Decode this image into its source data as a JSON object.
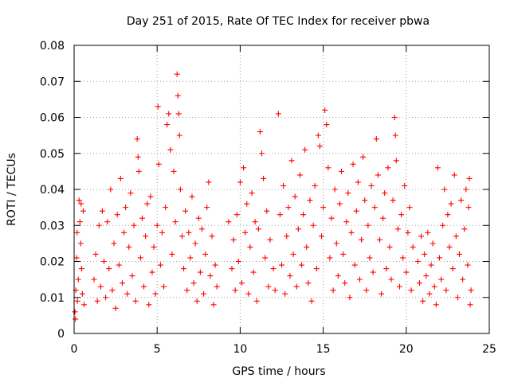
{
  "chart_data": {
    "type": "scatter",
    "title": "Day 251 of 2015, Rate Of TEC Index for receiver pbwa",
    "xlabel": "GPS time / hours",
    "ylabel": "ROTI / TECUs",
    "xlim": [
      0,
      25
    ],
    "ylim": [
      0,
      0.08
    ],
    "xticks": [
      0,
      5,
      10,
      15,
      20,
      25
    ],
    "xtick_labels": [
      "0",
      "5",
      "10",
      "15",
      "20",
      "25"
    ],
    "yticks": [
      0,
      0.01,
      0.02,
      0.03,
      0.04,
      0.05,
      0.06,
      0.07,
      0.08
    ],
    "ytick_labels": [
      "0",
      "0.01",
      "0.02",
      "0.03",
      "0.04",
      "0.05",
      "0.06",
      "0.07",
      "0.08"
    ],
    "grid": true,
    "marker": "plus",
    "color": "#ff0000",
    "points": [
      [
        0.05,
        0.006
      ],
      [
        0.1,
        0.012
      ],
      [
        0.15,
        0.021
      ],
      [
        0.2,
        0.009
      ],
      [
        0.25,
        0.015
      ],
      [
        0.3,
        0.037
      ],
      [
        0.35,
        0.031
      ],
      [
        0.4,
        0.025
      ],
      [
        0.45,
        0.018
      ],
      [
        0.5,
        0.011
      ],
      [
        0.55,
        0.034
      ],
      [
        0.6,
        0.008
      ],
      [
        0.08,
        0.004
      ],
      [
        0.18,
        0.028
      ],
      [
        0.42,
        0.036
      ],
      [
        1.2,
        0.015
      ],
      [
        1.3,
        0.022
      ],
      [
        1.4,
        0.009
      ],
      [
        1.5,
        0.03
      ],
      [
        1.6,
        0.013
      ],
      [
        1.7,
        0.034
      ],
      [
        1.8,
        0.02
      ],
      [
        1.9,
        0.01
      ],
      [
        2.0,
        0.031
      ],
      [
        2.1,
        0.018
      ],
      [
        2.2,
        0.04
      ],
      [
        2.3,
        0.012
      ],
      [
        2.4,
        0.025
      ],
      [
        2.5,
        0.007
      ],
      [
        2.6,
        0.033
      ],
      [
        2.7,
        0.019
      ],
      [
        2.8,
        0.043
      ],
      [
        2.9,
        0.014
      ],
      [
        3.0,
        0.028
      ],
      [
        3.1,
        0.035
      ],
      [
        3.2,
        0.011
      ],
      [
        3.3,
        0.024
      ],
      [
        3.4,
        0.039
      ],
      [
        3.5,
        0.016
      ],
      [
        3.6,
        0.03
      ],
      [
        3.7,
        0.009
      ],
      [
        3.8,
        0.054
      ],
      [
        3.85,
        0.049
      ],
      [
        3.9,
        0.045
      ],
      [
        4.0,
        0.021
      ],
      [
        4.1,
        0.032
      ],
      [
        4.2,
        0.013
      ],
      [
        4.3,
        0.027
      ],
      [
        4.4,
        0.036
      ],
      [
        4.5,
        0.008
      ],
      [
        4.6,
        0.038
      ],
      [
        4.7,
        0.017
      ],
      [
        4.8,
        0.024
      ],
      [
        4.9,
        0.011
      ],
      [
        5.0,
        0.03
      ],
      [
        5.05,
        0.063
      ],
      [
        5.1,
        0.047
      ],
      [
        5.2,
        0.019
      ],
      [
        5.3,
        0.028
      ],
      [
        5.4,
        0.013
      ],
      [
        5.5,
        0.035
      ],
      [
        5.6,
        0.058
      ],
      [
        5.7,
        0.061
      ],
      [
        5.8,
        0.051
      ],
      [
        5.9,
        0.022
      ],
      [
        6.0,
        0.045
      ],
      [
        6.1,
        0.031
      ],
      [
        6.2,
        0.072
      ],
      [
        6.25,
        0.066
      ],
      [
        6.3,
        0.061
      ],
      [
        6.35,
        0.055
      ],
      [
        6.4,
        0.04
      ],
      [
        6.5,
        0.027
      ],
      [
        6.6,
        0.018
      ],
      [
        6.7,
        0.034
      ],
      [
        6.8,
        0.012
      ],
      [
        6.9,
        0.028
      ],
      [
        7.0,
        0.021
      ],
      [
        7.1,
        0.038
      ],
      [
        7.2,
        0.014
      ],
      [
        7.3,
        0.025
      ],
      [
        7.4,
        0.009
      ],
      [
        7.5,
        0.032
      ],
      [
        7.6,
        0.017
      ],
      [
        7.7,
        0.029
      ],
      [
        7.8,
        0.011
      ],
      [
        7.9,
        0.022
      ],
      [
        8.0,
        0.035
      ],
      [
        8.1,
        0.042
      ],
      [
        8.2,
        0.016
      ],
      [
        8.3,
        0.027
      ],
      [
        8.4,
        0.008
      ],
      [
        8.5,
        0.019
      ],
      [
        8.6,
        0.013
      ],
      [
        9.3,
        0.031
      ],
      [
        9.5,
        0.018
      ],
      [
        9.6,
        0.026
      ],
      [
        9.7,
        0.012
      ],
      [
        9.8,
        0.033
      ],
      [
        9.9,
        0.02
      ],
      [
        10.0,
        0.042
      ],
      [
        10.1,
        0.014
      ],
      [
        10.2,
        0.046
      ],
      [
        10.3,
        0.028
      ],
      [
        10.4,
        0.036
      ],
      [
        10.5,
        0.011
      ],
      [
        10.6,
        0.024
      ],
      [
        10.7,
        0.039
      ],
      [
        10.8,
        0.017
      ],
      [
        10.9,
        0.031
      ],
      [
        11.0,
        0.009
      ],
      [
        11.1,
        0.029
      ],
      [
        11.2,
        0.056
      ],
      [
        11.3,
        0.05
      ],
      [
        11.4,
        0.043
      ],
      [
        11.5,
        0.021
      ],
      [
        11.6,
        0.034
      ],
      [
        11.7,
        0.013
      ],
      [
        11.8,
        0.026
      ],
      [
        12.0,
        0.018
      ],
      [
        12.1,
        0.012
      ],
      [
        12.3,
        0.061
      ],
      [
        12.4,
        0.033
      ],
      [
        12.5,
        0.019
      ],
      [
        12.6,
        0.041
      ],
      [
        12.7,
        0.011
      ],
      [
        12.8,
        0.027
      ],
      [
        12.9,
        0.035
      ],
      [
        13.0,
        0.016
      ],
      [
        13.1,
        0.048
      ],
      [
        13.2,
        0.022
      ],
      [
        13.3,
        0.038
      ],
      [
        13.4,
        0.013
      ],
      [
        13.5,
        0.029
      ],
      [
        13.6,
        0.044
      ],
      [
        13.7,
        0.019
      ],
      [
        13.8,
        0.033
      ],
      [
        13.9,
        0.051
      ],
      [
        14.0,
        0.024
      ],
      [
        14.1,
        0.014
      ],
      [
        14.2,
        0.037
      ],
      [
        14.3,
        0.009
      ],
      [
        14.4,
        0.03
      ],
      [
        14.5,
        0.041
      ],
      [
        14.6,
        0.018
      ],
      [
        14.7,
        0.055
      ],
      [
        14.8,
        0.052
      ],
      [
        14.9,
        0.027
      ],
      [
        15.0,
        0.035
      ],
      [
        15.1,
        0.062
      ],
      [
        15.2,
        0.058
      ],
      [
        15.3,
        0.046
      ],
      [
        15.4,
        0.021
      ],
      [
        15.5,
        0.032
      ],
      [
        15.6,
        0.012
      ],
      [
        15.7,
        0.04
      ],
      [
        15.8,
        0.025
      ],
      [
        15.9,
        0.016
      ],
      [
        16.0,
        0.036
      ],
      [
        16.1,
        0.045
      ],
      [
        16.2,
        0.022
      ],
      [
        16.3,
        0.014
      ],
      [
        16.4,
        0.031
      ],
      [
        16.5,
        0.039
      ],
      [
        16.6,
        0.01
      ],
      [
        16.7,
        0.028
      ],
      [
        16.8,
        0.047
      ],
      [
        16.9,
        0.019
      ],
      [
        17.0,
        0.034
      ],
      [
        17.1,
        0.042
      ],
      [
        17.2,
        0.015
      ],
      [
        17.3,
        0.026
      ],
      [
        17.4,
        0.049
      ],
      [
        17.5,
        0.037
      ],
      [
        17.6,
        0.012
      ],
      [
        17.7,
        0.03
      ],
      [
        17.8,
        0.021
      ],
      [
        17.9,
        0.041
      ],
      [
        18.0,
        0.017
      ],
      [
        18.1,
        0.035
      ],
      [
        18.2,
        0.054
      ],
      [
        18.3,
        0.044
      ],
      [
        18.4,
        0.026
      ],
      [
        18.5,
        0.011
      ],
      [
        18.6,
        0.032
      ],
      [
        18.7,
        0.039
      ],
      [
        18.8,
        0.018
      ],
      [
        18.9,
        0.046
      ],
      [
        19.0,
        0.024
      ],
      [
        19.1,
        0.015
      ],
      [
        19.2,
        0.037
      ],
      [
        19.3,
        0.06
      ],
      [
        19.35,
        0.055
      ],
      [
        19.4,
        0.048
      ],
      [
        19.5,
        0.029
      ],
      [
        19.6,
        0.013
      ],
      [
        19.7,
        0.033
      ],
      [
        19.8,
        0.021
      ],
      [
        19.9,
        0.041
      ],
      [
        20.0,
        0.017
      ],
      [
        20.1,
        0.028
      ],
      [
        20.2,
        0.035
      ],
      [
        20.3,
        0.012
      ],
      [
        20.4,
        0.024
      ],
      [
        20.7,
        0.02
      ],
      [
        20.8,
        0.014
      ],
      [
        20.9,
        0.027
      ],
      [
        21.0,
        0.009
      ],
      [
        21.1,
        0.022
      ],
      [
        21.2,
        0.016
      ],
      [
        21.3,
        0.028
      ],
      [
        21.4,
        0.011
      ],
      [
        21.5,
        0.019
      ],
      [
        21.6,
        0.025
      ],
      [
        21.7,
        0.013
      ],
      [
        21.8,
        0.008
      ],
      [
        21.9,
        0.046
      ],
      [
        22.0,
        0.021
      ],
      [
        22.1,
        0.015
      ],
      [
        22.2,
        0.03
      ],
      [
        22.3,
        0.04
      ],
      [
        22.4,
        0.012
      ],
      [
        22.5,
        0.033
      ],
      [
        22.6,
        0.024
      ],
      [
        22.7,
        0.036
      ],
      [
        22.8,
        0.018
      ],
      [
        22.9,
        0.044
      ],
      [
        23.0,
        0.027
      ],
      [
        23.1,
        0.01
      ],
      [
        23.2,
        0.022
      ],
      [
        23.3,
        0.037
      ],
      [
        23.4,
        0.015
      ],
      [
        23.5,
        0.029
      ],
      [
        23.6,
        0.04
      ],
      [
        23.7,
        0.019
      ],
      [
        23.8,
        0.043
      ],
      [
        23.9,
        0.012
      ],
      [
        23.75,
        0.035
      ],
      [
        23.85,
        0.008
      ]
    ]
  }
}
